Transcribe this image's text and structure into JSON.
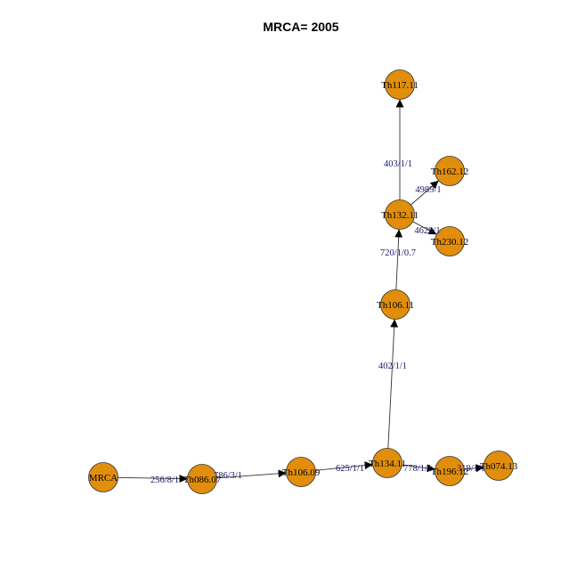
{
  "title": "MRCA= 2005",
  "colors": {
    "node_fill": "#e08e0b",
    "node_stroke": "#333333",
    "edge": "#333333",
    "edge_label": "#1a1a6e"
  },
  "nodes": [
    {
      "id": "MRCA",
      "label": "MRCA"
    },
    {
      "id": "Th086.07",
      "label": "Th086.07"
    },
    {
      "id": "Th106.09",
      "label": "Th106.09"
    },
    {
      "id": "Th134.11",
      "label": "Th134.11"
    },
    {
      "id": "Th196.12",
      "label": "Th196.12"
    },
    {
      "id": "Th074.13",
      "label": "Th074.13"
    },
    {
      "id": "Th106.11",
      "label": "Th106.11"
    },
    {
      "id": "Th132.11",
      "label": "Th132.11"
    },
    {
      "id": "Th117.11",
      "label": "Th117.11"
    },
    {
      "id": "Th162.12",
      "label": "Th162.12"
    },
    {
      "id": "Th230.12",
      "label": "Th230.12"
    }
  ],
  "edges": [
    {
      "from": "MRCA",
      "to": "Th086.07",
      "label": "256/8/1"
    },
    {
      "from": "Th086.07",
      "to": "Th106.09",
      "label": "786/3/1"
    },
    {
      "from": "Th106.09",
      "to": "Th134.11",
      "label": "625/1/1"
    },
    {
      "from": "Th134.11",
      "to": "Th196.12",
      "label": "778/1/1"
    },
    {
      "from": "Th196.12",
      "to": "Th074.13",
      "label": "319/1/1"
    },
    {
      "from": "Th134.11",
      "to": "Th106.11",
      "label": "402/1/1"
    },
    {
      "from": "Th106.11",
      "to": "Th132.11",
      "label": "720/1/0.7"
    },
    {
      "from": "Th132.11",
      "to": "Th117.11",
      "label": "403/1/1"
    },
    {
      "from": "Th132.11",
      "to": "Th162.12",
      "label": "4989/1"
    },
    {
      "from": "Th132.11",
      "to": "Th230.12",
      "label": "4629/1"
    }
  ]
}
